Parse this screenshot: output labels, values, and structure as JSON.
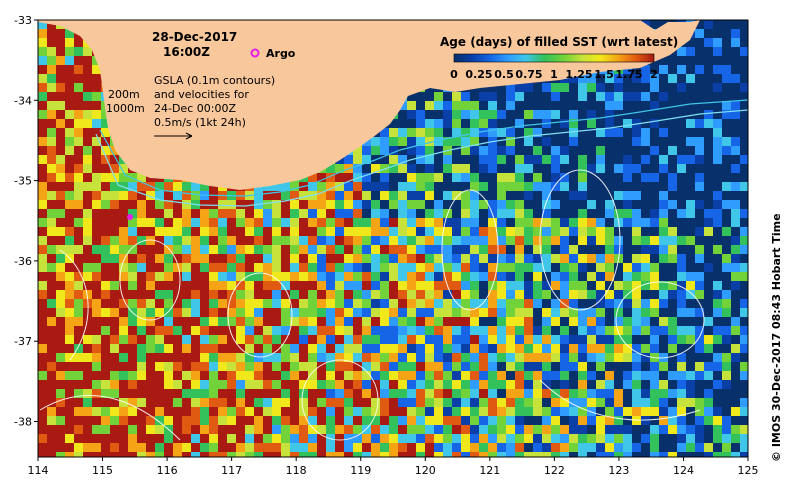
{
  "map": {
    "date_line": "28-Dec-2017",
    "time_line": "16:00Z",
    "argo_label": "Argo",
    "gsla_lines": [
      "GSLA (0.1m contours)",
      "and velocities for",
      "24-Dec 00:00Z",
      "0.5m/s (1kt 24h)"
    ],
    "isobath_labels": [
      "200m",
      "1000m"
    ],
    "side_caption": "© IMOS 30-Dec-2017 08:43 Hobart Time",
    "colorbar": {
      "title": "Age (days) of filled SST (wrt latest)",
      "tick_labels": [
        "0",
        "0.25",
        "0.5",
        "0.75",
        "1",
        "1.25",
        "1.5",
        "1.75",
        "2"
      ]
    },
    "x_ticks": [
      "114",
      "115",
      "116",
      "117",
      "118",
      "119",
      "120",
      "121",
      "122",
      "123",
      "124",
      "125"
    ],
    "y_ticks": [
      "-33",
      "-34",
      "-35",
      "-36",
      "-37",
      "-38"
    ],
    "colors": {
      "land": "#f8c79b",
      "scale": [
        "#08306b",
        "#0b3fa8",
        "#1565e6",
        "#2f9cff",
        "#3fc6e8",
        "#33c15b",
        "#71d23a",
        "#c7e23a",
        "#f0e81a",
        "#f5a415",
        "#e05a12",
        "#a81a12"
      ]
    }
  }
}
